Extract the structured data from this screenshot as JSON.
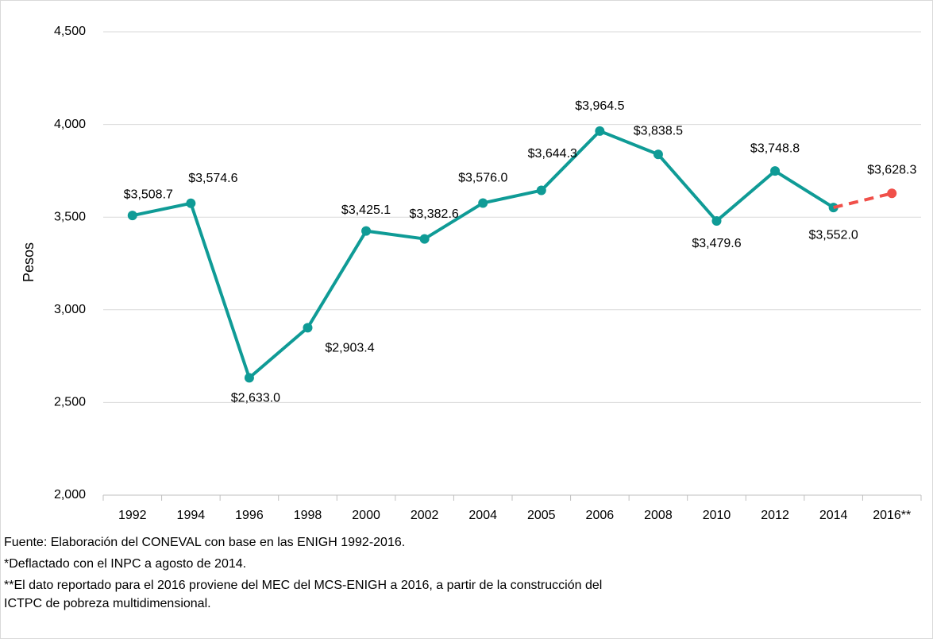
{
  "chart_data": {
    "type": "line",
    "y_label": "Pesos",
    "categories": [
      "1992",
      "1994",
      "1996",
      "1998",
      "2000",
      "2002",
      "2004",
      "2005",
      "2006",
      "2008",
      "2010",
      "2012",
      "2014",
      "2016**"
    ],
    "series": [
      {
        "color": "#0f9b96",
        "values": [
          3508.7,
          3574.6,
          2633.0,
          2903.4,
          3425.1,
          3382.6,
          3576.0,
          3644.3,
          3964.5,
          3838.5,
          3479.6,
          3748.8,
          3552.0,
          null
        ],
        "value_labels": [
          "$3,508.7",
          "$3,574.6",
          "$2,633.0",
          "$2,903.4",
          "$3,425.1",
          "$3,382.6",
          "$3,576.0",
          "$3,644.3",
          "$3,964.5",
          "$3,838.5",
          "$3,479.6",
          "$3,748.8",
          "$3,552.0",
          null
        ]
      },
      {
        "color": "#f0504a",
        "dashed": true,
        "values": [
          null,
          null,
          null,
          null,
          null,
          null,
          null,
          null,
          null,
          null,
          null,
          null,
          null,
          3628.3
        ],
        "value_labels": [
          null,
          null,
          null,
          null,
          null,
          null,
          null,
          null,
          null,
          null,
          null,
          null,
          null,
          "$3,628.3"
        ]
      }
    ],
    "ylim": [
      2000,
      4500
    ],
    "yticks": [
      {
        "value": 2000,
        "label": "2,000"
      },
      {
        "value": 2500,
        "label": "2,500"
      },
      {
        "value": 3000,
        "label": "3,000"
      },
      {
        "value": 3500,
        "label": "3,500"
      },
      {
        "value": 4000,
        "label": "4,000"
      },
      {
        "value": 4500,
        "label": "4,500"
      }
    ],
    "grid": true,
    "notes": [
      "Fuente: Elaboración del CONEVAL con base en las ENIGH 1992-2016.",
      "*Deflactado con el INPC a agosto de 2014.",
      "**El dato reportado para el 2016 proviene del MEC del MCS-ENIGH a 2016, a partir de la construcción del",
      "ICTPC de pobreza multidimensional."
    ]
  }
}
